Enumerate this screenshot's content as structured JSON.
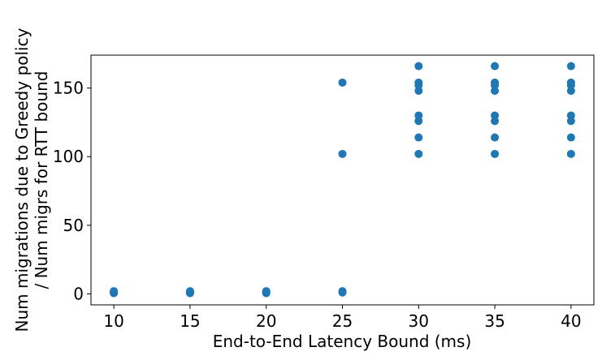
{
  "chart_data": {
    "type": "scatter",
    "title": "",
    "xlabel": "End-to-End Latency Bound (ms)",
    "ylabel_lines": [
      "Num migrations due to Greedy policy",
      "/ Num migrs for RTT bound"
    ],
    "xlim": [
      8.5,
      41.5
    ],
    "ylim": [
      -8,
      174
    ],
    "xticks": [
      10,
      15,
      20,
      25,
      30,
      35,
      40
    ],
    "yticks": [
      0,
      50,
      100,
      150
    ],
    "grid": false,
    "legend": "none",
    "marker_color": "#1f77b4",
    "points": [
      {
        "x": 10,
        "y": 0.5
      },
      {
        "x": 10,
        "y": 1
      },
      {
        "x": 10,
        "y": 1.5
      },
      {
        "x": 10,
        "y": 2
      },
      {
        "x": 15,
        "y": 0.5
      },
      {
        "x": 15,
        "y": 1
      },
      {
        "x": 15,
        "y": 1.5
      },
      {
        "x": 15,
        "y": 2
      },
      {
        "x": 20,
        "y": 0.5
      },
      {
        "x": 20,
        "y": 1
      },
      {
        "x": 20,
        "y": 1.5
      },
      {
        "x": 20,
        "y": 2
      },
      {
        "x": 25,
        "y": 1
      },
      {
        "x": 25,
        "y": 2
      },
      {
        "x": 25,
        "y": 102
      },
      {
        "x": 25,
        "y": 154
      },
      {
        "x": 30,
        "y": 102
      },
      {
        "x": 30,
        "y": 114
      },
      {
        "x": 30,
        "y": 126
      },
      {
        "x": 30,
        "y": 130
      },
      {
        "x": 30,
        "y": 148
      },
      {
        "x": 30,
        "y": 152
      },
      {
        "x": 30,
        "y": 154
      },
      {
        "x": 30,
        "y": 166
      },
      {
        "x": 35,
        "y": 102
      },
      {
        "x": 35,
        "y": 114
      },
      {
        "x": 35,
        "y": 126
      },
      {
        "x": 35,
        "y": 130
      },
      {
        "x": 35,
        "y": 148
      },
      {
        "x": 35,
        "y": 152
      },
      {
        "x": 35,
        "y": 154
      },
      {
        "x": 35,
        "y": 166
      },
      {
        "x": 40,
        "y": 102
      },
      {
        "x": 40,
        "y": 114
      },
      {
        "x": 40,
        "y": 126
      },
      {
        "x": 40,
        "y": 130
      },
      {
        "x": 40,
        "y": 148
      },
      {
        "x": 40,
        "y": 152
      },
      {
        "x": 40,
        "y": 154
      },
      {
        "x": 40,
        "y": 166
      }
    ]
  }
}
